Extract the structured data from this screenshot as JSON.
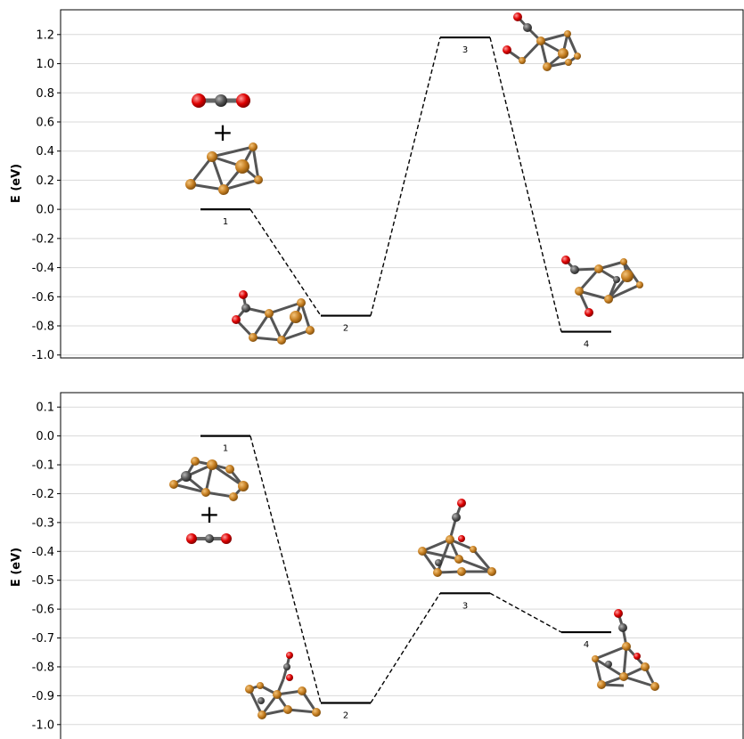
{
  "chart_data": [
    {
      "type": "line",
      "ylabel": "E (eV)",
      "ylim": [
        -1.02,
        1.37
      ],
      "yticks": [
        "-1.0",
        "-0.8",
        "-0.6",
        "-0.4",
        "-0.2",
        "0.0",
        "0.2",
        "0.4",
        "0.6",
        "0.8",
        "1.0",
        "1.2"
      ],
      "grid": true,
      "states": [
        {
          "label": "1",
          "x": 1,
          "y": 0.0
        },
        {
          "label": "2",
          "x": 2,
          "y": -0.73
        },
        {
          "label": "3",
          "x": 3,
          "y": 1.18
        },
        {
          "label": "4",
          "x": 4,
          "y": -0.84
        }
      ],
      "plus_sign": "+"
    },
    {
      "type": "line",
      "ylabel": "E (eV)",
      "ylim": [
        -1.05,
        0.15
      ],
      "yticks": [
        "-1.0",
        "-0.9",
        "-0.8",
        "-0.7",
        "-0.6",
        "-0.5",
        "-0.4",
        "-0.3",
        "-0.2",
        "-0.1",
        "0.0",
        "0.1"
      ],
      "grid": true,
      "states": [
        {
          "label": "1",
          "x": 1,
          "y": 0.0
        },
        {
          "label": "2",
          "x": 2,
          "y": -0.925
        },
        {
          "label": "3",
          "x": 3,
          "y": -0.545
        },
        {
          "label": "4",
          "x": 4,
          "y": -0.68
        }
      ],
      "plus_sign": "+"
    }
  ],
  "colors": {
    "metal_atom": "#c67f22",
    "carbon_atom": "#555555",
    "oxygen_atom": "#dd0000",
    "bond": "#666666",
    "grid": "#d9d9d9"
  }
}
